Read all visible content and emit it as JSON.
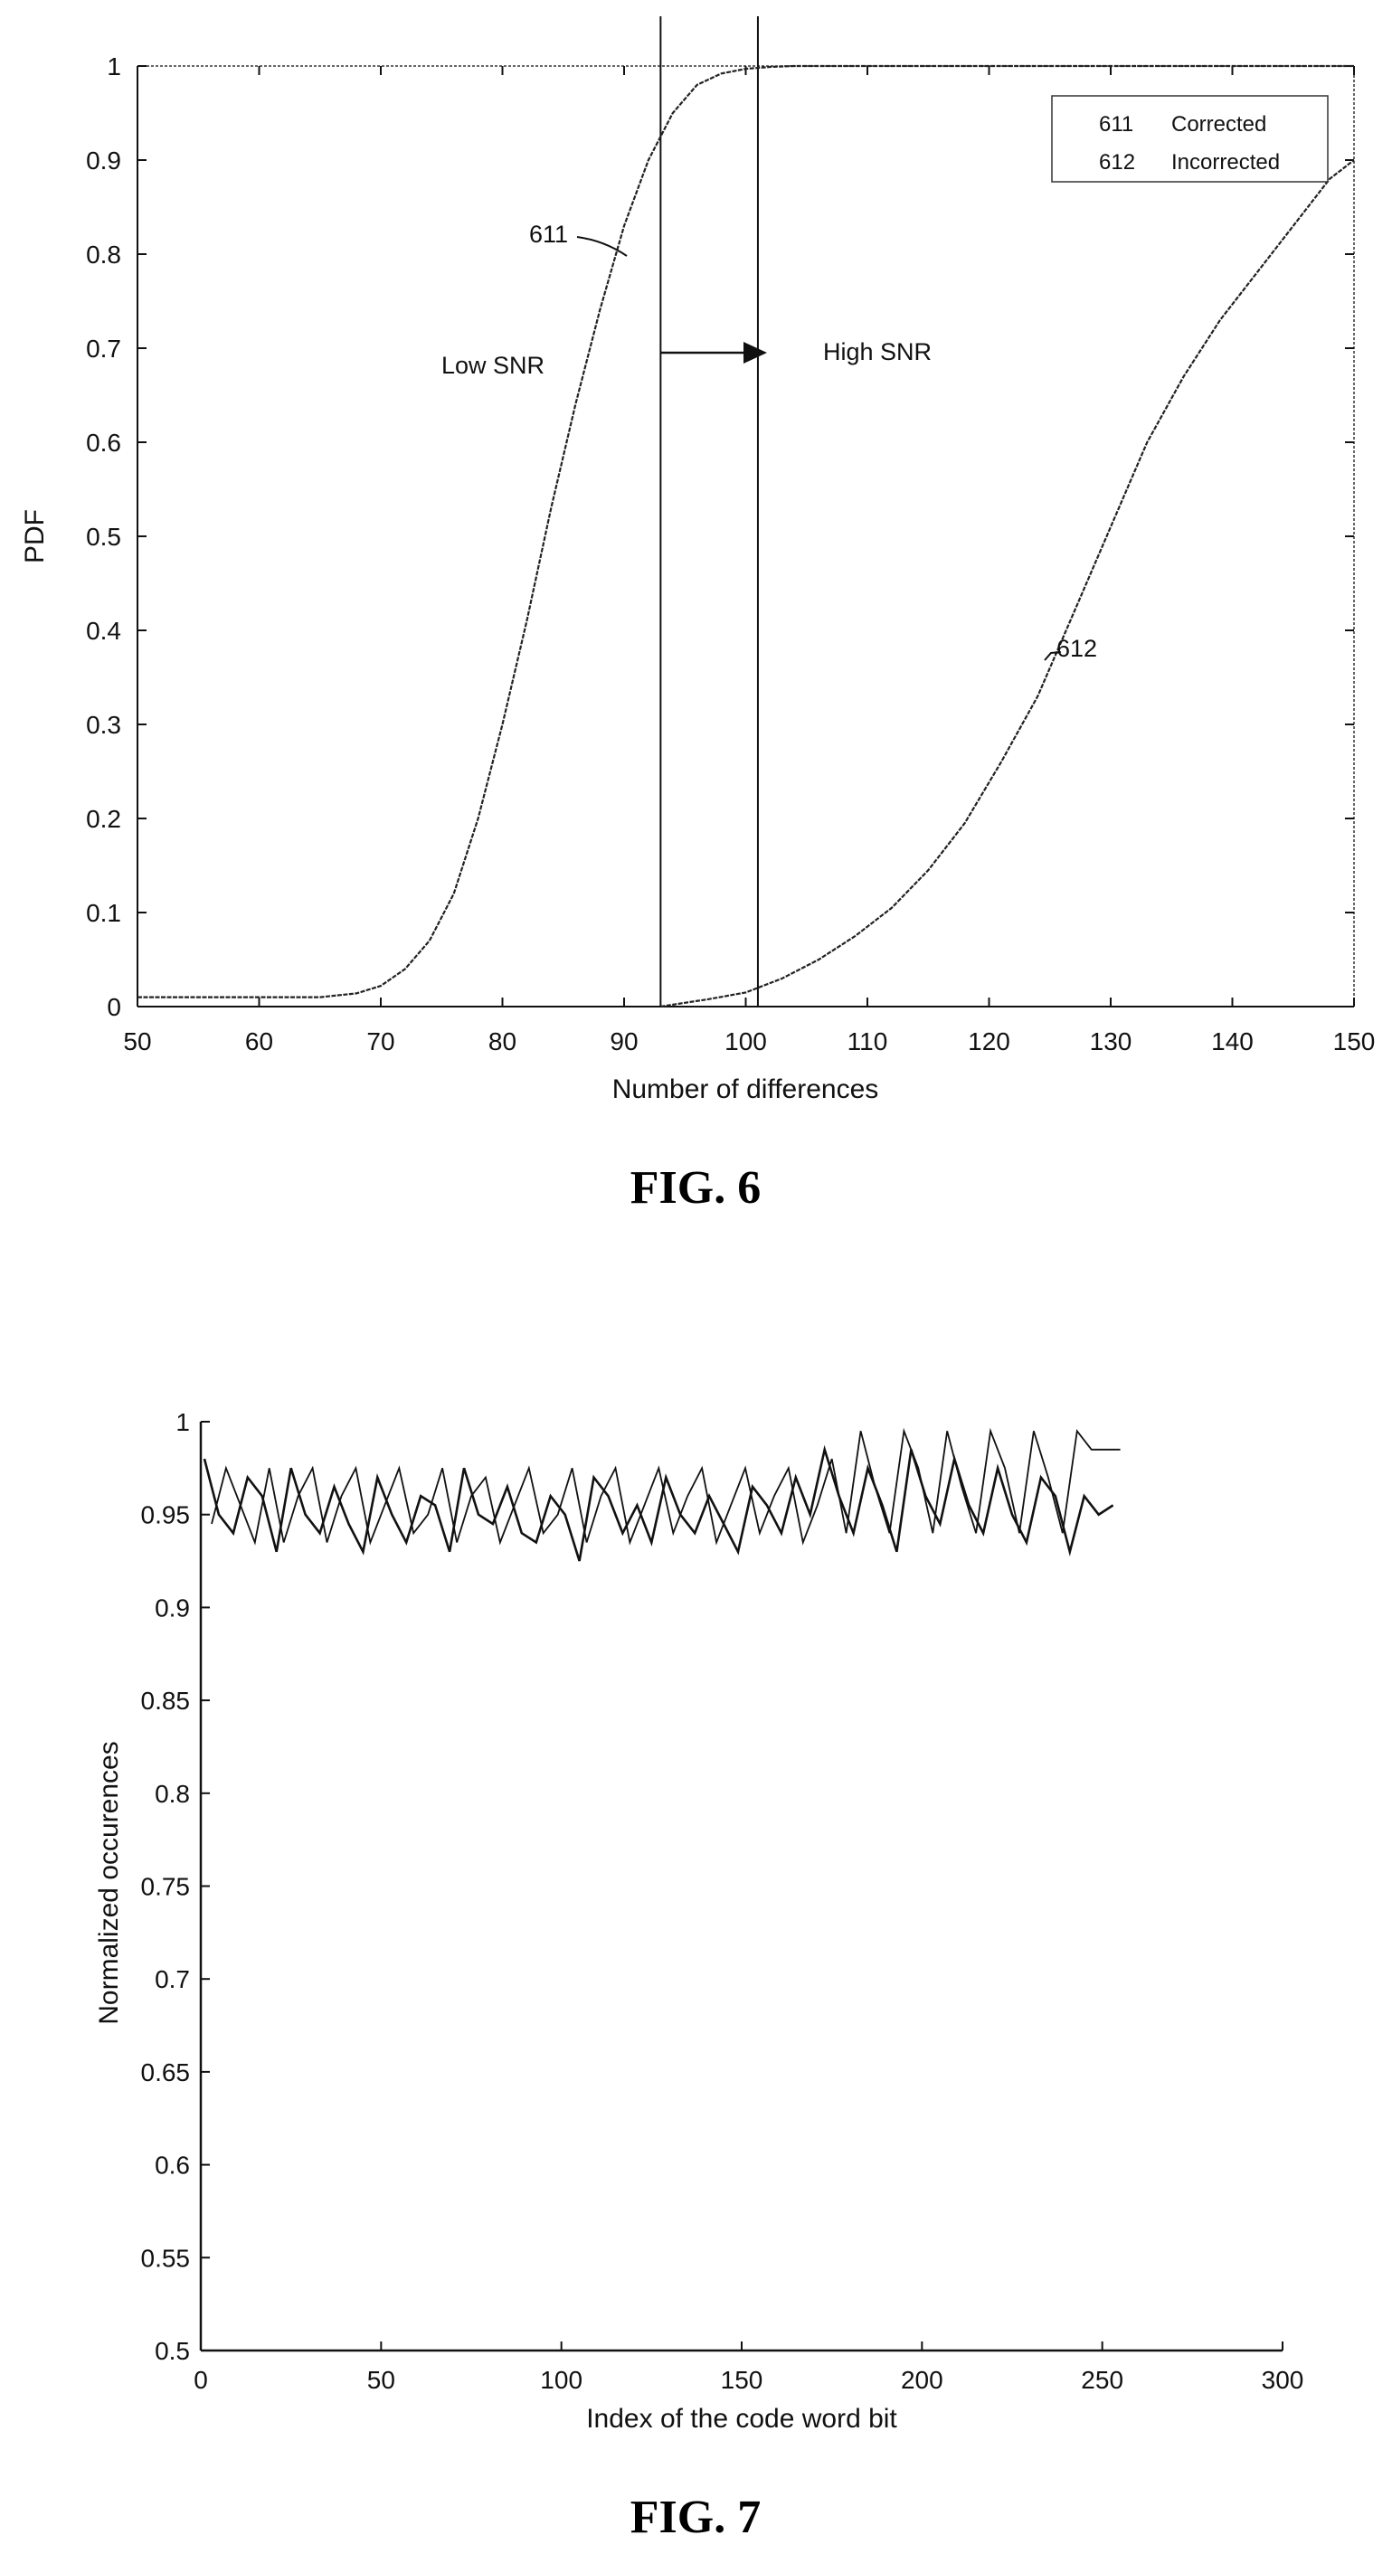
{
  "chart_data": [
    {
      "type": "line",
      "caption": "FIG. 6",
      "xlabel": "Number of differences",
      "ylabel": "PDF",
      "xlim": [
        50,
        150
      ],
      "ylim": [
        0,
        1
      ],
      "xticks": [
        "50",
        "60",
        "70",
        "80",
        "90",
        "100",
        "110",
        "120",
        "130",
        "140",
        "150"
      ],
      "yticks": [
        "0",
        "0.1",
        "0.2",
        "0.3",
        "0.4",
        "0.5",
        "0.6",
        "0.7",
        "0.8",
        "0.9",
        "1"
      ],
      "legend_position": "top-right",
      "legend": [
        {
          "code": "611",
          "label": "Corrected"
        },
        {
          "code": "612",
          "label": "Incorrected"
        }
      ],
      "series": [
        {
          "name": "611",
          "x": [
            50,
            60,
            65,
            68,
            70,
            72,
            74,
            76,
            78,
            80,
            82,
            84,
            86,
            88,
            90,
            92,
            94,
            96,
            98,
            100,
            102,
            104,
            110,
            150
          ],
          "y": [
            0.01,
            0.01,
            0.01,
            0.014,
            0.022,
            0.04,
            0.07,
            0.12,
            0.2,
            0.3,
            0.41,
            0.53,
            0.64,
            0.74,
            0.83,
            0.9,
            0.95,
            0.98,
            0.992,
            0.997,
            0.999,
            1.0,
            1.0,
            1.0
          ]
        },
        {
          "name": "612",
          "x": [
            93,
            95,
            97,
            100,
            103,
            106,
            109,
            112,
            115,
            118,
            121,
            124,
            127,
            130,
            133,
            136,
            139,
            142,
            145,
            148,
            150
          ],
          "y": [
            0.0,
            0.004,
            0.008,
            0.015,
            0.03,
            0.05,
            0.075,
            0.105,
            0.145,
            0.195,
            0.26,
            0.33,
            0.42,
            0.51,
            0.6,
            0.67,
            0.73,
            0.78,
            0.83,
            0.88,
            0.9
          ]
        }
      ],
      "vertical_lines": [
        93,
        101
      ],
      "annotations": {
        "label_611": "611",
        "label_612": "612",
        "low_snr": "Low SNR",
        "high_snr": "High SNR"
      }
    },
    {
      "type": "line",
      "caption": "FIG. 7",
      "xlabel": "Index of the code word bit",
      "ylabel": "Normalized occurences",
      "xlim": [
        0,
        300
      ],
      "ylim": [
        0.5,
        1
      ],
      "xticks": [
        "0",
        "50",
        "100",
        "150",
        "200",
        "250",
        "300"
      ],
      "yticks": [
        "0.5",
        "0.55",
        "0.6",
        "0.65",
        "0.7",
        "0.75",
        "0.8",
        "0.85",
        "0.9",
        "0.95",
        "1"
      ],
      "series": [
        {
          "x_start": 1,
          "x_step": 4,
          "values": [
            0.98,
            0.95,
            0.94,
            0.97,
            0.96,
            0.93,
            0.975,
            0.95,
            0.94,
            0.965,
            0.945,
            0.93,
            0.97,
            0.95,
            0.935,
            0.96,
            0.955,
            0.93,
            0.975,
            0.95,
            0.945,
            0.965,
            0.94,
            0.935,
            0.96,
            0.95,
            0.925,
            0.97,
            0.96,
            0.94,
            0.955,
            0.935,
            0.97,
            0.95,
            0.94,
            0.96,
            0.945,
            0.93,
            0.965,
            0.955,
            0.94,
            0.97,
            0.95,
            0.985,
            0.96,
            0.94,
            0.975,
            0.955,
            0.93,
            0.985,
            0.96,
            0.945,
            0.98,
            0.955,
            0.94,
            0.975,
            0.95,
            0.935,
            0.97,
            0.96,
            0.93,
            0.96,
            0.95,
            0.955
          ]
        },
        {
          "x_start": 3,
          "x_step": 4,
          "values": [
            0.945,
            0.975,
            0.955,
            0.935,
            0.975,
            0.935,
            0.96,
            0.975,
            0.935,
            0.96,
            0.975,
            0.935,
            0.955,
            0.975,
            0.94,
            0.95,
            0.975,
            0.935,
            0.96,
            0.97,
            0.935,
            0.955,
            0.975,
            0.94,
            0.95,
            0.975,
            0.935,
            0.96,
            0.975,
            0.935,
            0.955,
            0.975,
            0.94,
            0.96,
            0.975,
            0.935,
            0.955,
            0.975,
            0.94,
            0.96,
            0.975,
            0.935,
            0.955,
            0.98,
            0.94,
            0.995,
            0.965,
            0.94,
            0.995,
            0.975,
            0.94,
            0.995,
            0.965,
            0.94,
            0.995,
            0.975,
            0.94,
            0.995,
            0.97,
            0.94,
            0.995,
            0.985,
            0.985,
            0.985
          ]
        }
      ]
    }
  ]
}
